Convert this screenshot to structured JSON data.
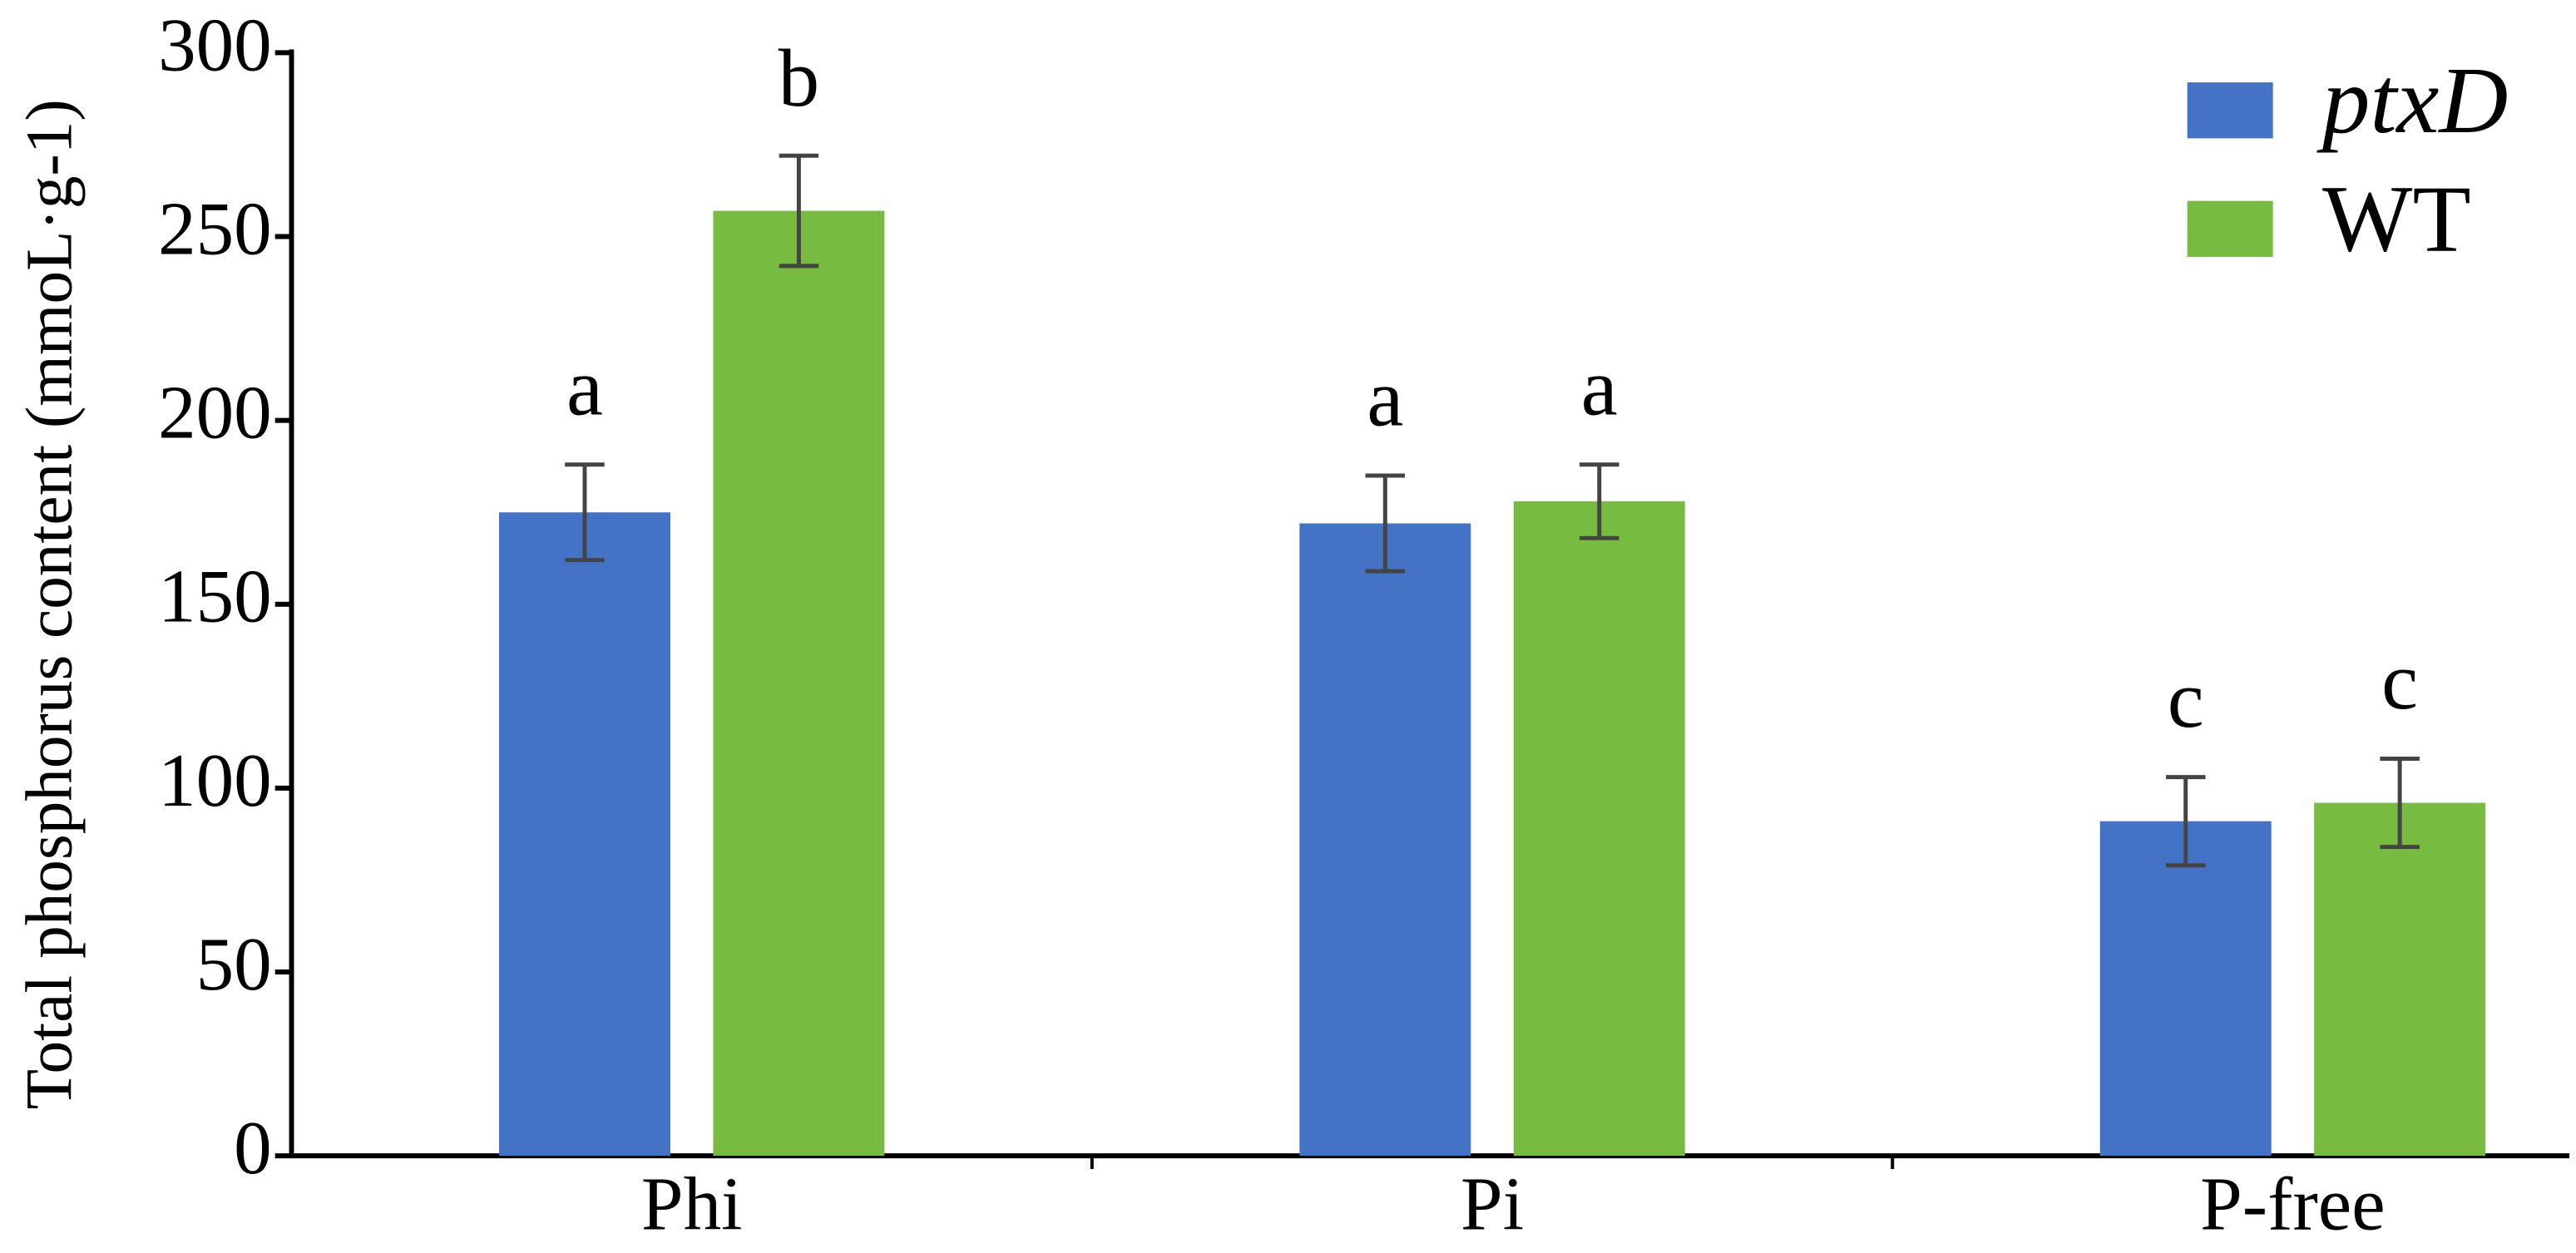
{
  "chart_data": {
    "type": "bar",
    "ylabel": "Total phosphorus content (mmoL·g-1)",
    "categories": [
      "Phi",
      "Pi",
      "P-free"
    ],
    "series": [
      {
        "name": "ptxD",
        "color": "#4472c4",
        "values": [
          175,
          172,
          91
        ],
        "errors": [
          13,
          13,
          12
        ],
        "annotations": [
          "a",
          "a",
          "c"
        ]
      },
      {
        "name": "WT",
        "color": "#77bb41",
        "values": [
          257,
          178,
          96
        ],
        "errors": [
          15,
          10,
          12
        ],
        "annotations": [
          "b",
          "a",
          "c"
        ]
      }
    ],
    "ylim": [
      0,
      300
    ],
    "yticks": [
      0,
      50,
      100,
      150,
      200,
      250,
      300
    ],
    "legend": "top-right"
  }
}
